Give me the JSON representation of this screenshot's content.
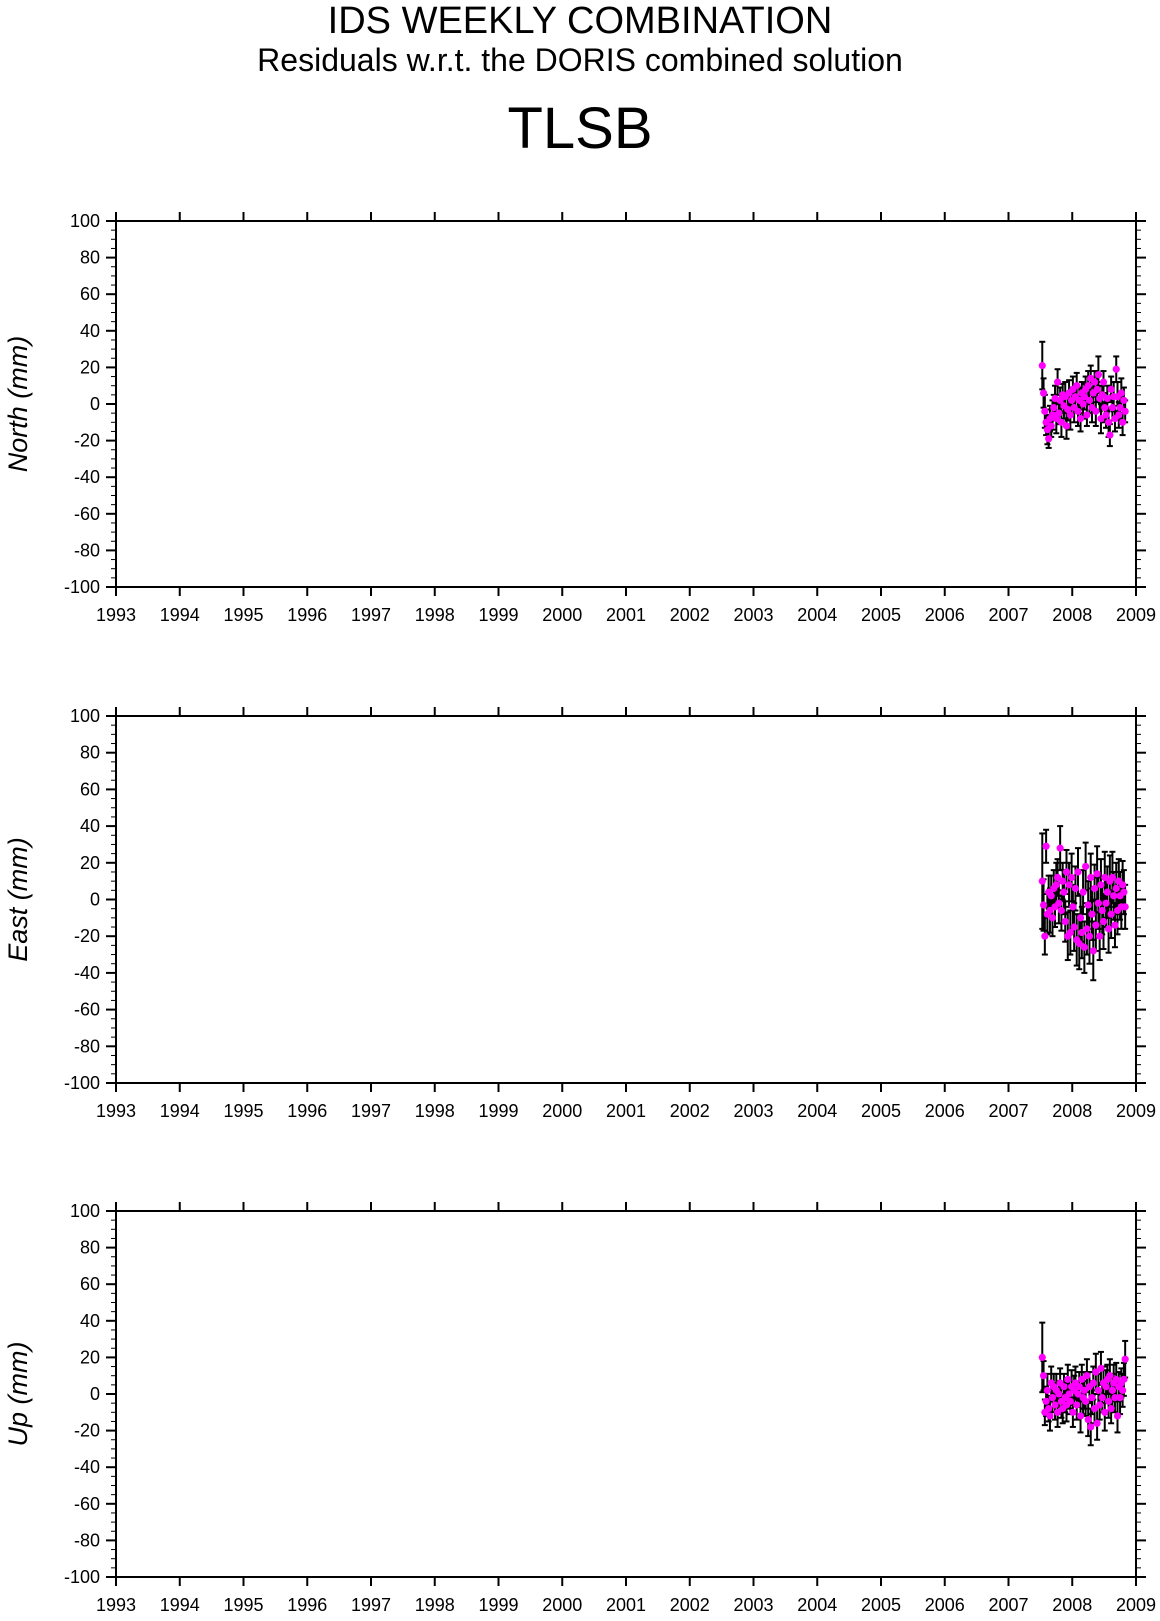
{
  "header": {
    "title": "IDS WEEKLY COMBINATION",
    "subtitle": "Residuals w.r.t. the DORIS combined solution",
    "station": "TLSB"
  },
  "colors": {
    "point": "#ff00ff",
    "errorbar": "#000000",
    "axis": "#000000"
  },
  "chart_data": [
    {
      "type": "scatter",
      "ylabel": "North (mm)",
      "xlim": [
        1993,
        2009
      ],
      "ylim": [
        -100,
        100
      ],
      "x_ticks": [
        "1993",
        "1994",
        "1995",
        "1996",
        "1997",
        "1998",
        "1999",
        "2000",
        "2001",
        "2002",
        "2003",
        "2004",
        "2005",
        "2006",
        "2007",
        "2008",
        "2009"
      ],
      "y_ticks": [
        "100",
        "80",
        "60",
        "40",
        "20",
        "0",
        "-20",
        "-40",
        "-60",
        "-80",
        "-100"
      ],
      "grid": false,
      "x": [
        2007.53,
        2007.55,
        2007.57,
        2007.59,
        2007.61,
        2007.63,
        2007.65,
        2007.67,
        2007.69,
        2007.71,
        2007.73,
        2007.75,
        2007.77,
        2007.79,
        2007.81,
        2007.83,
        2007.85,
        2007.87,
        2007.89,
        2007.91,
        2007.93,
        2007.95,
        2007.97,
        2007.99,
        2008.01,
        2008.03,
        2008.05,
        2008.07,
        2008.09,
        2008.11,
        2008.13,
        2008.15,
        2008.17,
        2008.19,
        2008.21,
        2008.23,
        2008.25,
        2008.27,
        2008.29,
        2008.31,
        2008.33,
        2008.35,
        2008.37,
        2008.39,
        2008.41,
        2008.43,
        2008.45,
        2008.47,
        2008.49,
        2008.51,
        2008.53,
        2008.55,
        2008.57,
        2008.59,
        2008.61,
        2008.63,
        2008.65,
        2008.67,
        2008.69,
        2008.71,
        2008.73,
        2008.75,
        2008.77,
        2008.79,
        2008.81,
        2008.83
      ],
      "y": [
        21,
        6,
        -4,
        -10,
        -14,
        -19,
        -8,
        -12,
        -6,
        -2,
        3,
        -8,
        12,
        -5,
        2,
        -10,
        5,
        -1,
        4,
        -12,
        -3,
        6,
        -6,
        2,
        8,
        -2,
        4,
        10,
        -4,
        2,
        -8,
        6,
        0,
        4,
        8,
        -6,
        10,
        2,
        14,
        -2,
        6,
        12,
        -4,
        8,
        16,
        3,
        -8,
        5,
        12,
        -2,
        -6,
        3,
        -10,
        -17,
        8,
        -2,
        4,
        -8,
        19,
        4,
        -6,
        -2,
        6,
        -10,
        2,
        -4
      ],
      "err": [
        13,
        8,
        9,
        7,
        8,
        5,
        7,
        6,
        8,
        7,
        7,
        8,
        7,
        6,
        7,
        8,
        6,
        7,
        8,
        7,
        6,
        7,
        8,
        7,
        7,
        8,
        6,
        7,
        8,
        7,
        7,
        6,
        8,
        7,
        7,
        6,
        8,
        7,
        7,
        8,
        7,
        6,
        8,
        7,
        10,
        7,
        8,
        7,
        6,
        8,
        7,
        7,
        8,
        6,
        7,
        7,
        8,
        7,
        7,
        8,
        7,
        6,
        8,
        7,
        7,
        6
      ]
    },
    {
      "type": "scatter",
      "ylabel": "East (mm)",
      "xlim": [
        1993,
        2009
      ],
      "ylim": [
        -100,
        100
      ],
      "x_ticks": [
        "1993",
        "1994",
        "1995",
        "1996",
        "1997",
        "1998",
        "1999",
        "2000",
        "2001",
        "2002",
        "2003",
        "2004",
        "2005",
        "2006",
        "2007",
        "2008",
        "2009"
      ],
      "y_ticks": [
        "100",
        "80",
        "60",
        "40",
        "20",
        "0",
        "-20",
        "-40",
        "-60",
        "-80",
        "-100"
      ],
      "grid": false,
      "x": [
        2007.53,
        2007.55,
        2007.57,
        2007.59,
        2007.61,
        2007.63,
        2007.65,
        2007.67,
        2007.69,
        2007.71,
        2007.73,
        2007.75,
        2007.77,
        2007.79,
        2007.81,
        2007.83,
        2007.85,
        2007.87,
        2007.89,
        2007.91,
        2007.93,
        2007.95,
        2007.97,
        2007.99,
        2008.01,
        2008.03,
        2008.05,
        2008.07,
        2008.09,
        2008.11,
        2008.13,
        2008.15,
        2008.17,
        2008.19,
        2008.21,
        2008.23,
        2008.25,
        2008.27,
        2008.29,
        2008.31,
        2008.33,
        2008.35,
        2008.37,
        2008.39,
        2008.41,
        2008.43,
        2008.45,
        2008.47,
        2008.49,
        2008.51,
        2008.53,
        2008.55,
        2008.57,
        2008.59,
        2008.61,
        2008.63,
        2008.65,
        2008.67,
        2008.69,
        2008.71,
        2008.73,
        2008.75,
        2008.77,
        2008.79,
        2008.81,
        2008.83
      ],
      "y": [
        10,
        -3,
        -20,
        29,
        -8,
        4,
        -6,
        2,
        -10,
        6,
        -4,
        8,
        12,
        -2,
        28,
        -6,
        10,
        4,
        -12,
        15,
        -20,
        8,
        -18,
        12,
        -4,
        -15,
        6,
        -22,
        15,
        -24,
        -10,
        -18,
        4,
        -26,
        18,
        -16,
        -3,
        -20,
        12,
        -8,
        -28,
        6,
        -14,
        14,
        -2,
        -20,
        8,
        -6,
        -12,
        12,
        -2,
        4,
        -16,
        10,
        -8,
        12,
        2,
        -14,
        6,
        -6,
        10,
        2,
        -4,
        8,
        4,
        -4
      ],
      "err": [
        26,
        14,
        10,
        9,
        11,
        9,
        12,
        11,
        10,
        10,
        11,
        12,
        10,
        11,
        12,
        11,
        10,
        12,
        11,
        12,
        13,
        12,
        12,
        13,
        12,
        13,
        12,
        14,
        13,
        14,
        13,
        14,
        12,
        14,
        13,
        14,
        13,
        15,
        13,
        14,
        16,
        13,
        14,
        15,
        14,
        13,
        14,
        13,
        15,
        14,
        13,
        14,
        13,
        14,
        13,
        14,
        13,
        12,
        14,
        13,
        12,
        13,
        12,
        13,
        12,
        12
      ]
    },
    {
      "type": "scatter",
      "ylabel": "Up (mm)",
      "xlim": [
        1993,
        2009
      ],
      "ylim": [
        -100,
        100
      ],
      "x_ticks": [
        "1993",
        "1994",
        "1995",
        "1996",
        "1997",
        "1998",
        "1999",
        "2000",
        "2001",
        "2002",
        "2003",
        "2004",
        "2005",
        "2006",
        "2007",
        "2008",
        "2009"
      ],
      "y_ticks": [
        "100",
        "80",
        "60",
        "40",
        "20",
        "0",
        "-20",
        "-40",
        "-60",
        "-80",
        "-100"
      ],
      "grid": false,
      "x": [
        2007.53,
        2007.55,
        2007.57,
        2007.59,
        2007.61,
        2007.63,
        2007.65,
        2007.67,
        2007.69,
        2007.71,
        2007.73,
        2007.75,
        2007.77,
        2007.79,
        2007.81,
        2007.83,
        2007.85,
        2007.87,
        2007.89,
        2007.91,
        2007.93,
        2007.95,
        2007.97,
        2007.99,
        2008.01,
        2008.03,
        2008.05,
        2008.07,
        2008.09,
        2008.11,
        2008.13,
        2008.15,
        2008.17,
        2008.19,
        2008.21,
        2008.23,
        2008.25,
        2008.27,
        2008.29,
        2008.31,
        2008.33,
        2008.35,
        2008.37,
        2008.39,
        2008.41,
        2008.43,
        2008.45,
        2008.47,
        2008.49,
        2008.51,
        2008.53,
        2008.55,
        2008.57,
        2008.59,
        2008.61,
        2008.63,
        2008.65,
        2008.67,
        2008.69,
        2008.71,
        2008.73,
        2008.75,
        2008.77,
        2008.79,
        2008.81,
        2008.83
      ],
      "y": [
        20,
        10,
        -10,
        -4,
        2,
        -8,
        -12,
        6,
        -2,
        4,
        -6,
        2,
        -10,
        0,
        6,
        -4,
        -8,
        4,
        -2,
        -6,
        8,
        0,
        -4,
        4,
        -10,
        2,
        6,
        -6,
        0,
        4,
        -12,
        8,
        -2,
        2,
        -4,
        10,
        -14,
        4,
        -18,
        -2,
        6,
        -8,
        12,
        -16,
        2,
        -6,
        14,
        -2,
        6,
        -10,
        4,
        8,
        -4,
        10,
        -8,
        2,
        6,
        -2,
        8,
        -12,
        4,
        -2,
        6,
        2,
        8,
        19
      ],
      "err": [
        19,
        8,
        7,
        8,
        9,
        7,
        8,
        9,
        8,
        7,
        8,
        9,
        8,
        7,
        8,
        9,
        8,
        7,
        8,
        9,
        8,
        8,
        7,
        9,
        8,
        8,
        9,
        8,
        7,
        8,
        9,
        8,
        9,
        10,
        8,
        9,
        9,
        8,
        10,
        9,
        9,
        8,
        10,
        9,
        9,
        8,
        9,
        8,
        9,
        10,
        9,
        8,
        9,
        9,
        8,
        9,
        10,
        8,
        9,
        9,
        8,
        9,
        8,
        9,
        9,
        10
      ]
    }
  ]
}
